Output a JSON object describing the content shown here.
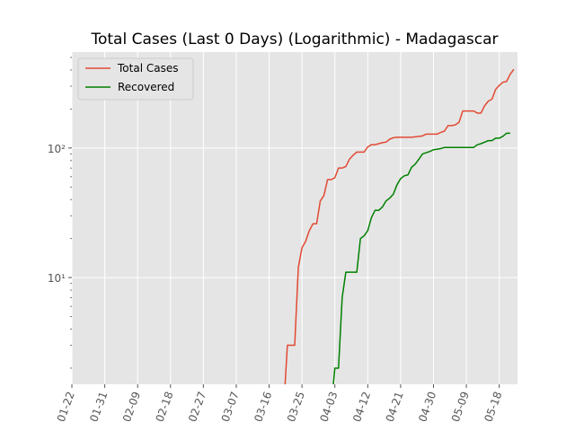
{
  "chart_data": {
    "type": "line",
    "title": "Total Cases (Last 0 Days) (Logarithmic) - Madagascar",
    "xlabel": "",
    "ylabel": "",
    "x_axis_type": "date",
    "y_scale": "log",
    "grid": true,
    "legend_position": "top-left",
    "xlim": [
      "2020-01-22",
      "2020-05-23"
    ],
    "ylim": [
      1.5,
      550
    ],
    "x_ticks": [
      {
        "date": "2020-01-22",
        "label": "01-22"
      },
      {
        "date": "2020-01-31",
        "label": "01-31"
      },
      {
        "date": "2020-02-09",
        "label": "02-09"
      },
      {
        "date": "2020-02-18",
        "label": "02-18"
      },
      {
        "date": "2020-02-27",
        "label": "02-27"
      },
      {
        "date": "2020-03-07",
        "label": "03-07"
      },
      {
        "date": "2020-03-16",
        "label": "03-16"
      },
      {
        "date": "2020-03-25",
        "label": "03-25"
      },
      {
        "date": "2020-04-03",
        "label": "04-03"
      },
      {
        "date": "2020-04-12",
        "label": "04-12"
      },
      {
        "date": "2020-04-21",
        "label": "04-21"
      },
      {
        "date": "2020-04-30",
        "label": "04-30"
      },
      {
        "date": "2020-05-09",
        "label": "05-09"
      },
      {
        "date": "2020-05-18",
        "label": "05-18"
      }
    ],
    "y_ticks": [
      {
        "value": 10,
        "label": "10¹"
      },
      {
        "value": 100,
        "label": "10²"
      }
    ],
    "series": [
      {
        "name": "Total Cases",
        "color": "#e24a33",
        "points": [
          [
            "2020-03-20",
            1
          ],
          [
            "2020-03-21",
            3
          ],
          [
            "2020-03-22",
            3
          ],
          [
            "2020-03-23",
            3
          ],
          [
            "2020-03-24",
            12
          ],
          [
            "2020-03-25",
            17
          ],
          [
            "2020-03-26",
            19
          ],
          [
            "2020-03-27",
            23
          ],
          [
            "2020-03-28",
            26
          ],
          [
            "2020-03-29",
            26
          ],
          [
            "2020-03-30",
            39
          ],
          [
            "2020-03-31",
            43
          ],
          [
            "2020-04-01",
            57
          ],
          [
            "2020-04-02",
            57
          ],
          [
            "2020-04-03",
            59
          ],
          [
            "2020-04-04",
            70
          ],
          [
            "2020-04-05",
            70
          ],
          [
            "2020-04-06",
            72
          ],
          [
            "2020-04-07",
            82
          ],
          [
            "2020-04-08",
            88
          ],
          [
            "2020-04-09",
            93
          ],
          [
            "2020-04-10",
            93
          ],
          [
            "2020-04-11",
            93
          ],
          [
            "2020-04-12",
            102
          ],
          [
            "2020-04-13",
            106
          ],
          [
            "2020-04-14",
            106
          ],
          [
            "2020-04-15",
            108
          ],
          [
            "2020-04-16",
            110
          ],
          [
            "2020-04-17",
            111
          ],
          [
            "2020-04-18",
            117
          ],
          [
            "2020-04-19",
            120
          ],
          [
            "2020-04-20",
            121
          ],
          [
            "2020-04-21",
            121
          ],
          [
            "2020-04-22",
            121
          ],
          [
            "2020-04-23",
            121
          ],
          [
            "2020-04-24",
            121
          ],
          [
            "2020-04-25",
            122
          ],
          [
            "2020-04-26",
            123
          ],
          [
            "2020-04-27",
            124
          ],
          [
            "2020-04-28",
            128
          ],
          [
            "2020-04-29",
            128
          ],
          [
            "2020-04-30",
            128
          ],
          [
            "2020-05-01",
            128
          ],
          [
            "2020-05-02",
            132
          ],
          [
            "2020-05-03",
            135
          ],
          [
            "2020-05-04",
            149
          ],
          [
            "2020-05-05",
            149
          ],
          [
            "2020-05-06",
            151
          ],
          [
            "2020-05-07",
            158
          ],
          [
            "2020-05-08",
            193
          ],
          [
            "2020-05-09",
            193
          ],
          [
            "2020-05-10",
            193
          ],
          [
            "2020-05-11",
            193
          ],
          [
            "2020-05-12",
            186
          ],
          [
            "2020-05-13",
            186
          ],
          [
            "2020-05-14",
            212
          ],
          [
            "2020-05-15",
            230
          ],
          [
            "2020-05-16",
            238
          ],
          [
            "2020-05-17",
            283
          ],
          [
            "2020-05-18",
            304
          ],
          [
            "2020-05-19",
            322
          ],
          [
            "2020-05-20",
            326
          ],
          [
            "2020-05-21",
            371
          ],
          [
            "2020-05-22",
            405
          ]
        ]
      },
      {
        "name": "Recovered",
        "color": "#008000",
        "points": [
          [
            "2020-04-02",
            1
          ],
          [
            "2020-04-03",
            2
          ],
          [
            "2020-04-04",
            2
          ],
          [
            "2020-04-05",
            7
          ],
          [
            "2020-04-06",
            11
          ],
          [
            "2020-04-07",
            11
          ],
          [
            "2020-04-08",
            11
          ],
          [
            "2020-04-09",
            11
          ],
          [
            "2020-04-10",
            20
          ],
          [
            "2020-04-11",
            21
          ],
          [
            "2020-04-12",
            23
          ],
          [
            "2020-04-13",
            29
          ],
          [
            "2020-04-14",
            33
          ],
          [
            "2020-04-15",
            33
          ],
          [
            "2020-04-16",
            35
          ],
          [
            "2020-04-17",
            39
          ],
          [
            "2020-04-18",
            41
          ],
          [
            "2020-04-19",
            44
          ],
          [
            "2020-04-20",
            52
          ],
          [
            "2020-04-21",
            58
          ],
          [
            "2020-04-22",
            61
          ],
          [
            "2020-04-23",
            62
          ],
          [
            "2020-04-24",
            71
          ],
          [
            "2020-04-25",
            75
          ],
          [
            "2020-04-26",
            82
          ],
          [
            "2020-04-27",
            90
          ],
          [
            "2020-04-28",
            92
          ],
          [
            "2020-04-29",
            94
          ],
          [
            "2020-04-30",
            97
          ],
          [
            "2020-05-01",
            98
          ],
          [
            "2020-05-02",
            99
          ],
          [
            "2020-05-03",
            101
          ],
          [
            "2020-05-04",
            101
          ],
          [
            "2020-05-05",
            101
          ],
          [
            "2020-05-06",
            101
          ],
          [
            "2020-05-07",
            101
          ],
          [
            "2020-05-08",
            101
          ],
          [
            "2020-05-09",
            101
          ],
          [
            "2020-05-10",
            101
          ],
          [
            "2020-05-11",
            101
          ],
          [
            "2020-05-12",
            106
          ],
          [
            "2020-05-13",
            108
          ],
          [
            "2020-05-14",
            111
          ],
          [
            "2020-05-15",
            114
          ],
          [
            "2020-05-16",
            114
          ],
          [
            "2020-05-17",
            119
          ],
          [
            "2020-05-18",
            119
          ],
          [
            "2020-05-19",
            123
          ],
          [
            "2020-05-20",
            130
          ],
          [
            "2020-05-21",
            130
          ]
        ]
      }
    ]
  }
}
